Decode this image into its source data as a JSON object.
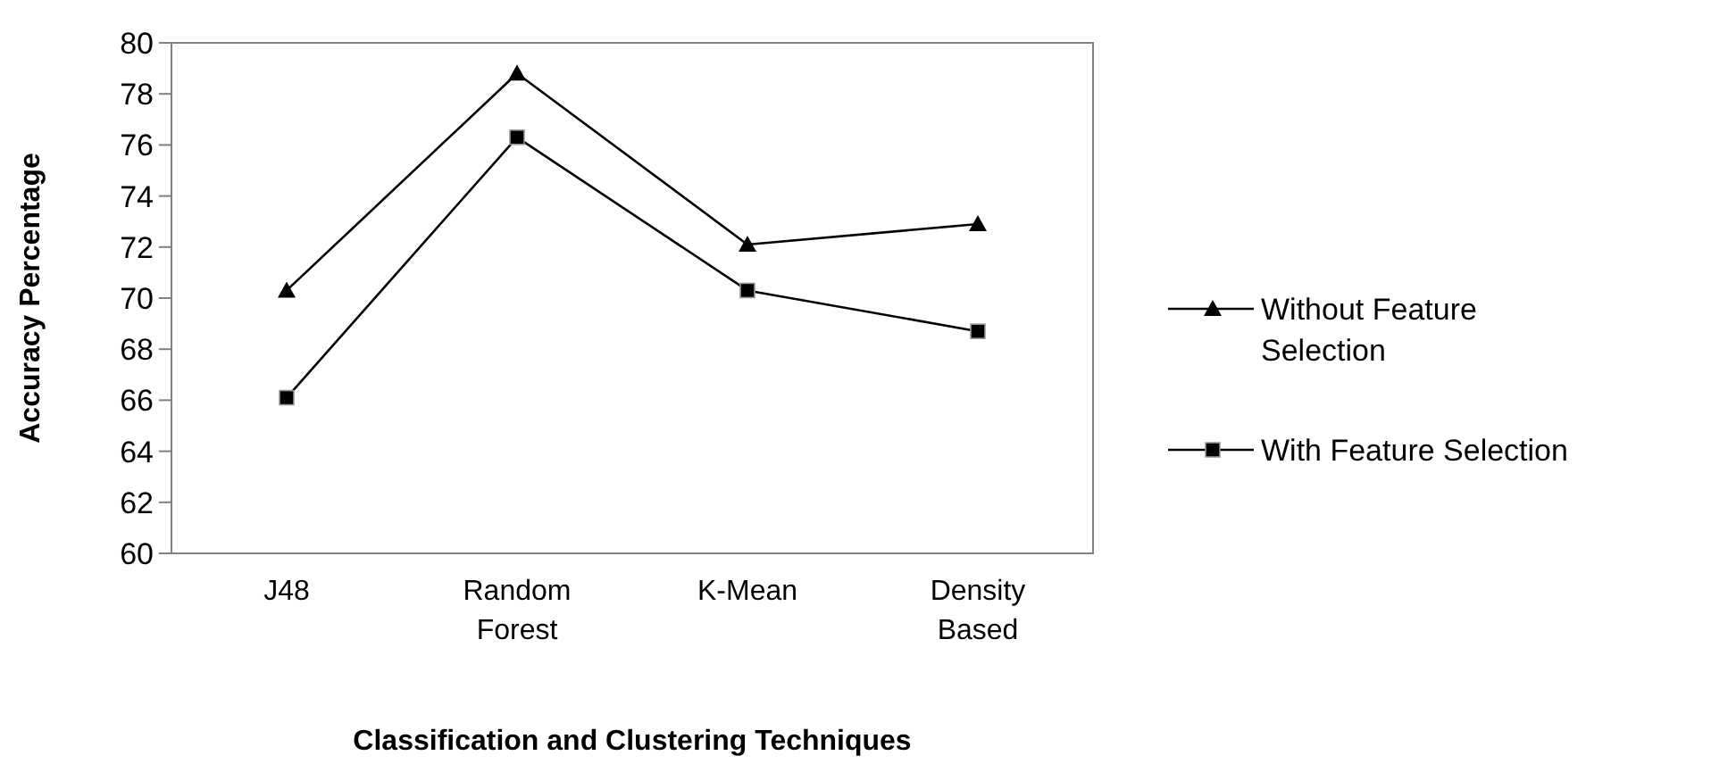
{
  "chart_data": {
    "type": "line",
    "xlabel": "Classification and Clustering Techniques",
    "ylabel": "Accuracy Percentage",
    "categories": [
      "J48",
      "Random Forest",
      "K-Mean",
      "Density Based"
    ],
    "series": [
      {
        "name": "Without Feature Selection",
        "color": "#000000",
        "marker": "triangle",
        "values": [
          70.3,
          78.8,
          72.1,
          72.9
        ]
      },
      {
        "name": "With Feature Selection",
        "color": "#000000",
        "marker": "square",
        "values": [
          66.1,
          76.3,
          70.3,
          68.7
        ]
      }
    ],
    "ylim": [
      60,
      80
    ],
    "yticks": [
      60,
      62,
      64,
      66,
      68,
      70,
      72,
      74,
      76,
      78,
      80
    ],
    "grid": false,
    "legend": "right",
    "line_style": "solid"
  }
}
